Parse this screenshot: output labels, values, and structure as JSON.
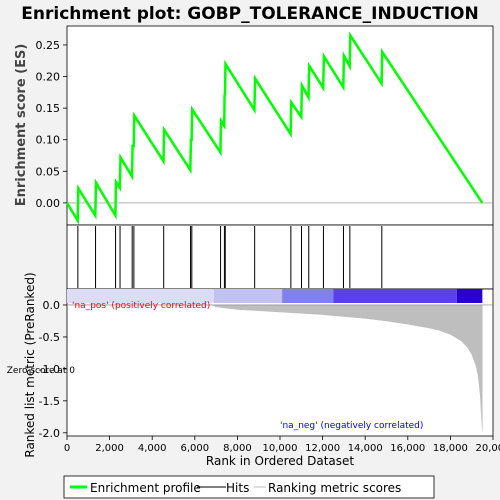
{
  "chart_data": {
    "type": "line",
    "title": "Enrichment plot: GOBP_TOLERANCE_INDUCTION",
    "x_axis": {
      "label": "Rank in Ordered Dataset",
      "range": [
        0,
        20000
      ],
      "ticks": [
        0,
        2000,
        4000,
        6000,
        8000,
        10000,
        12000,
        14000,
        16000,
        18000,
        20000
      ],
      "tick_labels": [
        "0",
        "2,000",
        "4,000",
        "6,000",
        "8,000",
        "10,000",
        "12,000",
        "14,000",
        "16,000",
        "18,000",
        "20,000"
      ]
    },
    "es_panel": {
      "ylabel": "Enrichment score (ES)",
      "ylim": [
        -0.035,
        0.28
      ],
      "ticks": [
        0.0,
        0.05,
        0.1,
        0.15,
        0.2,
        0.25
      ],
      "tick_labels": [
        "0.00",
        "0.05",
        "0.10",
        "0.15",
        "0.20",
        "0.25"
      ],
      "line_color": "#00ff00",
      "points": [
        [
          0,
          0.0
        ],
        [
          500,
          -0.028
        ],
        [
          530,
          0.023
        ],
        [
          1330,
          -0.02
        ],
        [
          1360,
          0.032
        ],
        [
          2270,
          -0.02
        ],
        [
          2300,
          0.033
        ],
        [
          2480,
          0.024
        ],
        [
          2510,
          0.072
        ],
        [
          3050,
          0.042
        ],
        [
          3080,
          0.092
        ],
        [
          3130,
          0.088
        ],
        [
          3160,
          0.138
        ],
        [
          4530,
          0.066
        ],
        [
          4560,
          0.116
        ],
        [
          5790,
          0.052
        ],
        [
          5820,
          0.102
        ],
        [
          5850,
          0.098
        ],
        [
          5880,
          0.148
        ],
        [
          7200,
          0.08
        ],
        [
          7230,
          0.13
        ],
        [
          7380,
          0.122
        ],
        [
          7400,
          0.172
        ],
        [
          7420,
          0.17
        ],
        [
          7440,
          0.22
        ],
        [
          8800,
          0.147
        ],
        [
          8830,
          0.197
        ],
        [
          10500,
          0.109
        ],
        [
          10530,
          0.159
        ],
        [
          11000,
          0.136
        ],
        [
          11030,
          0.186
        ],
        [
          11340,
          0.167
        ],
        [
          11370,
          0.217
        ],
        [
          12030,
          0.182
        ],
        [
          12060,
          0.232
        ],
        [
          12970,
          0.183
        ],
        [
          13000,
          0.233
        ],
        [
          13270,
          0.216
        ],
        [
          13300,
          0.265
        ],
        [
          14770,
          0.189
        ],
        [
          14800,
          0.239
        ],
        [
          19500,
          0.0
        ]
      ]
    },
    "hits_panel": {
      "hit_ranks": [
        510,
        1340,
        2280,
        2490,
        3060,
        3140,
        4540,
        5800,
        5860,
        7210,
        7390,
        7430,
        8810,
        10510,
        11010,
        11350,
        12040,
        12980,
        13280,
        14780
      ]
    },
    "metric_panel": {
      "ylabel": "Ranked list metric (PreRanked)",
      "ylim": [
        -2.05,
        0.25
      ],
      "ticks": [
        0.0,
        -0.5,
        -1.0,
        -1.5,
        -2.0
      ],
      "tick_labels": [
        "0.0",
        "-0.5",
        "-1.0",
        "-1.5",
        "-2.0"
      ],
      "fill_color": "#bebebe",
      "curve": [
        [
          0,
          0.0
        ],
        [
          6800,
          0.0
        ],
        [
          7000,
          -0.03
        ],
        [
          8000,
          -0.07
        ],
        [
          9000,
          -0.09
        ],
        [
          10000,
          -0.11
        ],
        [
          11000,
          -0.13
        ],
        [
          12000,
          -0.15
        ],
        [
          13000,
          -0.18
        ],
        [
          14000,
          -0.21
        ],
        [
          15000,
          -0.25
        ],
        [
          16000,
          -0.3
        ],
        [
          17000,
          -0.36
        ],
        [
          17500,
          -0.4
        ],
        [
          18000,
          -0.46
        ],
        [
          18500,
          -0.56
        ],
        [
          18800,
          -0.66
        ],
        [
          19000,
          -0.77
        ],
        [
          19200,
          -0.95
        ],
        [
          19300,
          -1.1
        ],
        [
          19400,
          -1.4
        ],
        [
          19450,
          -1.7
        ],
        [
          19500,
          -1.97
        ]
      ],
      "color_bar": [
        {
          "from": 0,
          "to": 6900,
          "color": "#dcdcf6"
        },
        {
          "from": 6900,
          "to": 10100,
          "color": "#c2c2f2"
        },
        {
          "from": 10100,
          "to": 12500,
          "color": "#8080ee"
        },
        {
          "from": 12500,
          "to": 18300,
          "color": "#5a40ea"
        },
        {
          "from": 18300,
          "to": 19500,
          "color": "#2a00d0"
        }
      ],
      "annotations": {
        "pos": "'na_pos' (positively correlated)",
        "neg": "'na_neg' (negatively correlated)",
        "zero": "Zero score at 0"
      },
      "pos_color": "#ff0000",
      "neg_color": "#0000ff"
    },
    "legend": {
      "items": [
        {
          "label": "Enrichment profile",
          "color": "#00ff00",
          "kind": "thick-line"
        },
        {
          "label": "Hits",
          "color": "#000000",
          "kind": "thin-line"
        },
        {
          "label": "Ranking metric scores",
          "color": "#bebebe",
          "kind": "thin-line"
        }
      ]
    }
  }
}
